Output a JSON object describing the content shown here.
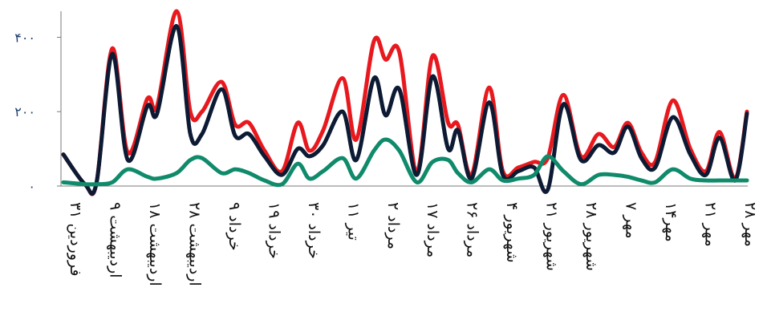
{
  "chart_data": {
    "type": "line",
    "title": "",
    "xlabel": "",
    "ylabel": "",
    "ylim": [
      0,
      470
    ],
    "grid": false,
    "legend": "none",
    "yticks": [
      {
        "value": 0,
        "label": "۰"
      },
      {
        "value": 200,
        "label": "۲۰۰"
      },
      {
        "value": 400,
        "label": "۴۰۰"
      }
    ],
    "x_range": [
      0,
      43
    ],
    "categories": [
      {
        "x": 0,
        "label": "۳۱ فروردین"
      },
      {
        "x": 2,
        "label": "۹ اردیبهشت"
      },
      {
        "x": 4,
        "label": "۱۸ اردیبهشت"
      },
      {
        "x": 6,
        "label": "۲۸ اردیبهشت"
      },
      {
        "x": 8,
        "label": "۹ خرداد"
      },
      {
        "x": 10,
        "label": "۱۹ خرداد"
      },
      {
        "x": 12,
        "label": "۳۰ خرداد"
      },
      {
        "x": 14,
        "label": "۱۱ تیر"
      },
      {
        "x": 16,
        "label": "۲ مرداد"
      },
      {
        "x": 18,
        "label": "۱۷ مرداد"
      },
      {
        "x": 20,
        "label": "۲۶ مرداد"
      },
      {
        "x": 22,
        "label": "۴ شهریور"
      },
      {
        "x": 24,
        "label": "۲۱ شهریور"
      },
      {
        "x": 26,
        "label": "۲۸ شهریور"
      },
      {
        "x": 28,
        "label": "۷ مهر"
      },
      {
        "x": 30,
        "label": "۱۴مهر"
      },
      {
        "x": 32,
        "label": "۲۱ مهر"
      },
      {
        "x": 34,
        "label": "۲۸ مهر"
      }
    ],
    "series": [
      {
        "color": "#e8191e",
        "points": [
          [
            0,
            85
          ],
          [
            1.1,
            5
          ],
          [
            1.7,
            10
          ],
          [
            2.5,
            370
          ],
          [
            3.3,
            90
          ],
          [
            4.3,
            235
          ],
          [
            4.8,
            215
          ],
          [
            5.8,
            470
          ],
          [
            6.5,
            200
          ],
          [
            7.1,
            200
          ],
          [
            8.1,
            280
          ],
          [
            8.8,
            165
          ],
          [
            9.5,
            170
          ],
          [
            10.3,
            95
          ],
          [
            11.2,
            40
          ],
          [
            12,
            170
          ],
          [
            12.6,
            95
          ],
          [
            13.3,
            150
          ],
          [
            14.3,
            290
          ],
          [
            15,
            125
          ],
          [
            15.9,
            390
          ],
          [
            16.5,
            340
          ],
          [
            17.2,
            360
          ],
          [
            18.1,
            40
          ],
          [
            18.9,
            350
          ],
          [
            19.7,
            170
          ],
          [
            20.2,
            165
          ],
          [
            20.9,
            30
          ],
          [
            21.8,
            265
          ],
          [
            22.5,
            40
          ],
          [
            23.3,
            50
          ],
          [
            24.1,
            65
          ],
          [
            24.8,
            75
          ],
          [
            25.6,
            245
          ],
          [
            26.5,
            80
          ],
          [
            27.4,
            140
          ],
          [
            28.2,
            105
          ],
          [
            28.9,
            170
          ],
          [
            29.6,
            90
          ],
          [
            30.3,
            65
          ],
          [
            31.2,
            230
          ],
          [
            32.1,
            100
          ],
          [
            32.9,
            40
          ],
          [
            33.6,
            145
          ],
          [
            34.4,
            20
          ],
          [
            35,
            200
          ]
        ]
      },
      {
        "color": "#0c1a33",
        "points": [
          [
            0,
            85
          ],
          [
            1.1,
            5
          ],
          [
            1.7,
            10
          ],
          [
            2.5,
            355
          ],
          [
            3.3,
            70
          ],
          [
            4.3,
            215
          ],
          [
            4.8,
            195
          ],
          [
            5.8,
            430
          ],
          [
            6.5,
            140
          ],
          [
            7.1,
            140
          ],
          [
            8.1,
            260
          ],
          [
            8.8,
            135
          ],
          [
            9.5,
            140
          ],
          [
            10.3,
            80
          ],
          [
            11.2,
            30
          ],
          [
            12,
            100
          ],
          [
            12.6,
            80
          ],
          [
            13.3,
            110
          ],
          [
            14.3,
            200
          ],
          [
            15,
            70
          ],
          [
            15.9,
            290
          ],
          [
            16.5,
            190
          ],
          [
            17.2,
            260
          ],
          [
            18.1,
            30
          ],
          [
            18.9,
            295
          ],
          [
            19.7,
            100
          ],
          [
            20.2,
            150
          ],
          [
            20.9,
            20
          ],
          [
            21.8,
            225
          ],
          [
            22.5,
            30
          ],
          [
            23.3,
            40
          ],
          [
            24.1,
            50
          ],
          [
            24.8,
            -10
          ],
          [
            25.6,
            220
          ],
          [
            26.5,
            70
          ],
          [
            27.4,
            110
          ],
          [
            28.2,
            90
          ],
          [
            28.9,
            160
          ],
          [
            29.6,
            75
          ],
          [
            30.3,
            50
          ],
          [
            31.2,
            185
          ],
          [
            32.1,
            85
          ],
          [
            32.9,
            30
          ],
          [
            33.6,
            130
          ],
          [
            34.4,
            15
          ],
          [
            35,
            195
          ]
        ]
      },
      {
        "color": "#0f8a6a",
        "points": [
          [
            0,
            10
          ],
          [
            1.1,
            5
          ],
          [
            1.7,
            5
          ],
          [
            2.5,
            10
          ],
          [
            3.3,
            45
          ],
          [
            4.3,
            25
          ],
          [
            4.8,
            20
          ],
          [
            5.8,
            35
          ],
          [
            6.5,
            70
          ],
          [
            7.1,
            75
          ],
          [
            8.1,
            35
          ],
          [
            8.8,
            45
          ],
          [
            9.5,
            35
          ],
          [
            10.3,
            15
          ],
          [
            11.2,
            5
          ],
          [
            12,
            60
          ],
          [
            12.6,
            20
          ],
          [
            13.3,
            40
          ],
          [
            14.3,
            75
          ],
          [
            15,
            20
          ],
          [
            15.9,
            95
          ],
          [
            16.5,
            125
          ],
          [
            17.2,
            95
          ],
          [
            18.1,
            10
          ],
          [
            18.9,
            65
          ],
          [
            19.7,
            70
          ],
          [
            20.2,
            35
          ],
          [
            20.9,
            10
          ],
          [
            21.8,
            45
          ],
          [
            22.5,
            15
          ],
          [
            23.3,
            20
          ],
          [
            24.1,
            30
          ],
          [
            24.8,
            80
          ],
          [
            25.6,
            40
          ],
          [
            26.5,
            5
          ],
          [
            27.4,
            30
          ],
          [
            28.2,
            30
          ],
          [
            28.9,
            25
          ],
          [
            29.6,
            15
          ],
          [
            30.3,
            10
          ],
          [
            31.2,
            45
          ],
          [
            32.1,
            20
          ],
          [
            32.9,
            15
          ],
          [
            33.6,
            15
          ],
          [
            34.4,
            15
          ],
          [
            35,
            15
          ]
        ]
      }
    ]
  }
}
